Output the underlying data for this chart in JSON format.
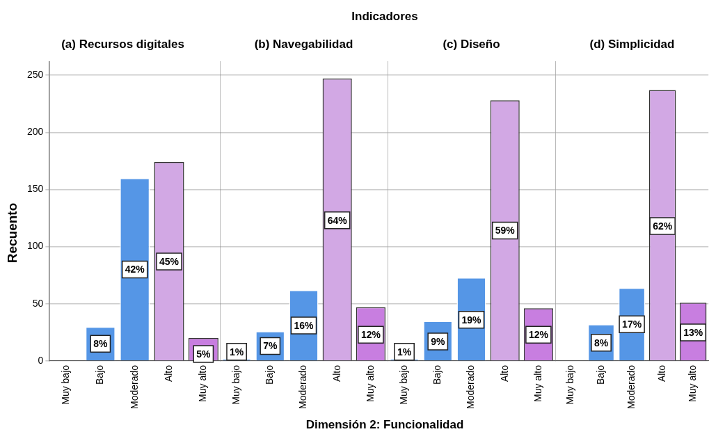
{
  "chart_data": [
    {
      "type": "bar",
      "title": "(a) Recursos digitales",
      "ylabel": "Recuento",
      "categories": [
        "Muy bajo",
        "Bajo",
        "Moderado",
        "Alto",
        "Muy alto"
      ],
      "values": [
        0,
        30,
        160,
        174,
        20
      ],
      "colors": [
        "#5596e6",
        "#5596e6",
        "#5596e6",
        "#d2a8e4",
        "#c87ee0"
      ],
      "ylim": [
        0,
        262
      ],
      "yticks": [
        0,
        50,
        100,
        150,
        200,
        250
      ],
      "grid": "y",
      "annotations": [
        "Indicadores",
        "Dimensión 2: Funcionalidad",
        {
          "text": "8%",
          "x": "Bajo",
          "y": 15
        },
        {
          "text": "42%",
          "x": "Moderado",
          "y": 80
        },
        {
          "text": "45%",
          "x": "Alto",
          "y": 87
        },
        {
          "text": "5%",
          "x": "Muy alto",
          "y": 6
        }
      ]
    },
    {
      "type": "bar",
      "title": "(b) Navegabilidad",
      "categories": [
        "Muy bajo",
        "Bajo",
        "Moderado",
        "Alto",
        "Muy alto"
      ],
      "values": [
        2,
        26,
        62,
        247,
        47
      ],
      "colors": [
        "#5596e6",
        "#5596e6",
        "#5596e6",
        "#d2a8e4",
        "#c87ee0"
      ],
      "ylim": [
        0,
        262
      ],
      "yticks": [
        0,
        50,
        100,
        150,
        200,
        250
      ],
      "grid": "y",
      "tick_labels": "x",
      "annotations": [
        {
          "text": "1%",
          "x": "Muy bajo",
          "y": 8
        },
        {
          "text": "7%",
          "x": "Bajo",
          "y": 13
        },
        {
          "text": "16%",
          "x": "Moderado",
          "y": 31
        },
        {
          "text": "64%",
          "x": "Alto",
          "y": 123
        },
        {
          "text": "12%",
          "x": "Muy alto",
          "y": 23
        }
      ]
    },
    {
      "type": "bar",
      "title": "(c) Diseño",
      "categories": [
        "Muy bajo",
        "Bajo",
        "Moderado",
        "Alto",
        "Muy alto"
      ],
      "values": [
        2,
        35,
        73,
        228,
        46
      ],
      "colors": [
        "#5596e6",
        "#5596e6",
        "#5596e6",
        "#d2a8e4",
        "#c87ee0"
      ],
      "ylim": [
        0,
        262
      ],
      "yticks": [
        0,
        50,
        100,
        150,
        200,
        250
      ],
      "grid": "y",
      "tick_labels": "x",
      "annotations": [
        {
          "text": "1%",
          "x": "Muy bajo",
          "y": 8
        },
        {
          "text": "9%",
          "x": "Bajo",
          "y": 17
        },
        {
          "text": "19%",
          "x": "Moderado",
          "y": 36
        },
        {
          "text": "59%",
          "x": "Alto",
          "y": 114
        },
        {
          "text": "12%",
          "x": "Muy alto",
          "y": 23
        }
      ]
    },
    {
      "type": "bar",
      "title": "(d) Simplicidad",
      "categories": [
        "Muy bajo",
        "Bajo",
        "Moderado",
        "Alto",
        "Muy alto"
      ],
      "values": [
        0,
        32,
        64,
        237,
        51
      ],
      "colors": [
        "#5596e6",
        "#5596e6",
        "#5596e6",
        "#d2a8e4",
        "#c87ee0"
      ],
      "ylim": [
        0,
        262
      ],
      "yticks": [
        0,
        50,
        100,
        150,
        200,
        250
      ],
      "grid": "y",
      "tick_labels": "x",
      "annotations": [
        {
          "text": "8%",
          "x": "Bajo",
          "y": 16
        },
        {
          "text": "17%",
          "x": "Moderado",
          "y": 32
        },
        {
          "text": "62%",
          "x": "Alto",
          "y": 118
        },
        {
          "text": "13%",
          "x": "Muy alto",
          "y": 25
        }
      ]
    }
  ]
}
